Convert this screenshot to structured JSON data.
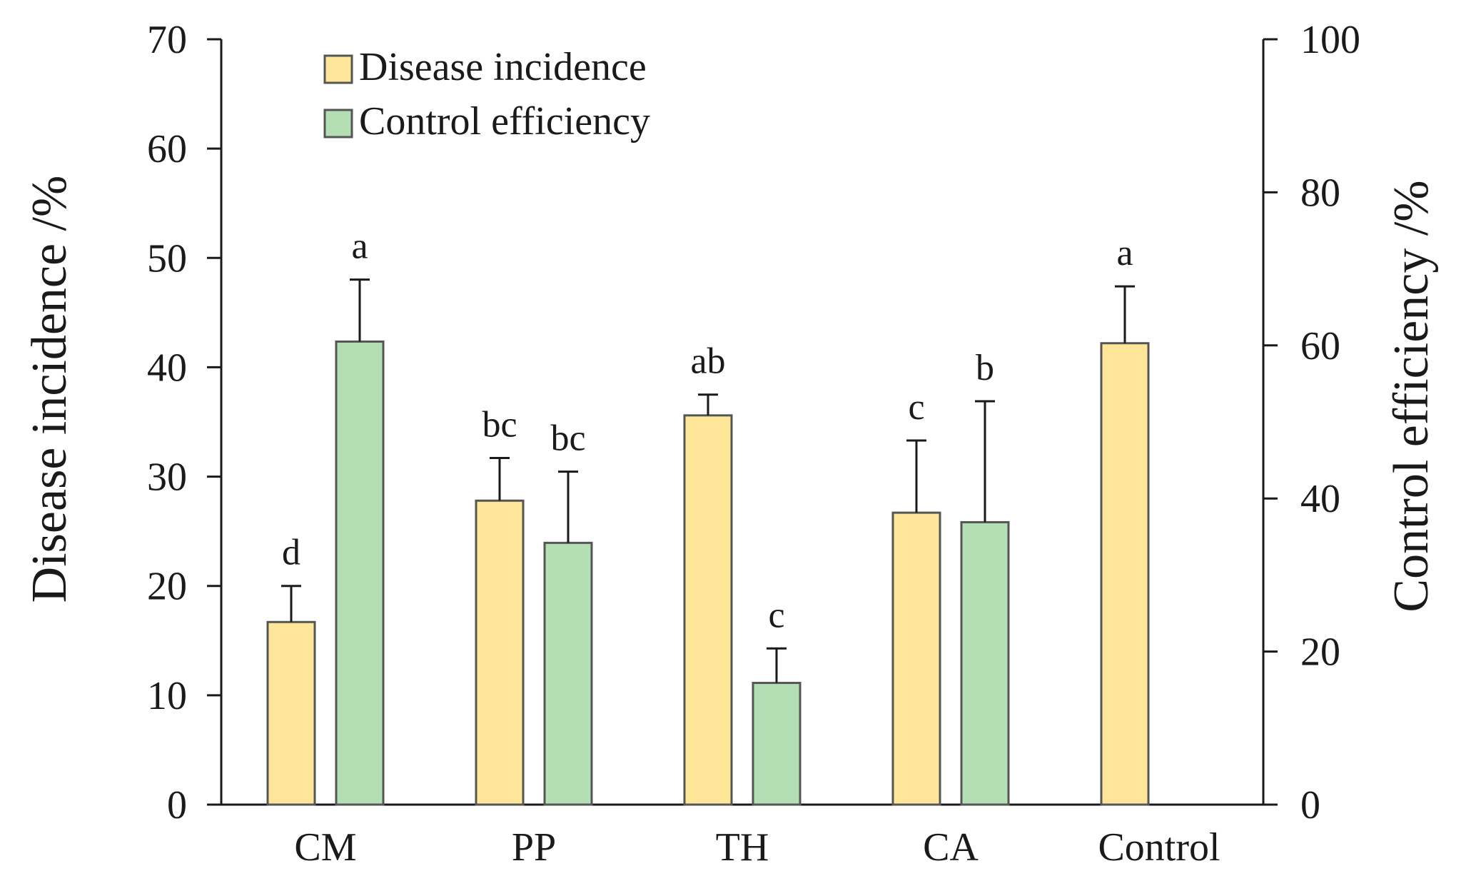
{
  "chart_data": {
    "type": "bar",
    "categories": [
      "CM",
      "PP",
      "TH",
      "CA",
      "Control"
    ],
    "series": [
      {
        "name": "Disease incidence",
        "axis": "left",
        "color": "#FFE699",
        "values": [
          16.7,
          27.8,
          35.6,
          26.7,
          42.2
        ],
        "errors": [
          3.3,
          3.9,
          1.9,
          6.6,
          5.2
        ],
        "labels": [
          "d",
          "bc",
          "ab",
          "c",
          "a"
        ]
      },
      {
        "name": "Control efficiency",
        "axis": "right",
        "color": "#B4DEB4",
        "values": [
          60.5,
          34.2,
          15.9,
          36.9,
          null
        ],
        "errors": [
          8.1,
          9.3,
          4.5,
          15.8,
          null
        ],
        "labels": [
          "a",
          "bc",
          "c",
          "b",
          null
        ]
      }
    ],
    "y_left": {
      "label": "Disease incidence /%",
      "ylim": [
        0,
        70
      ],
      "ticks": [
        0,
        10,
        20,
        30,
        40,
        50,
        60,
        70
      ]
    },
    "y_right": {
      "label": "Control efficiency /%",
      "ylim": [
        0,
        100
      ],
      "ticks": [
        0,
        20,
        40,
        60,
        80,
        100
      ]
    },
    "legend": {
      "position": "top-left",
      "entries": [
        "Disease incidence",
        "Control efficiency"
      ]
    },
    "grid": false,
    "bar_outline": "#555555",
    "axis_color": "#1a1a1a"
  }
}
